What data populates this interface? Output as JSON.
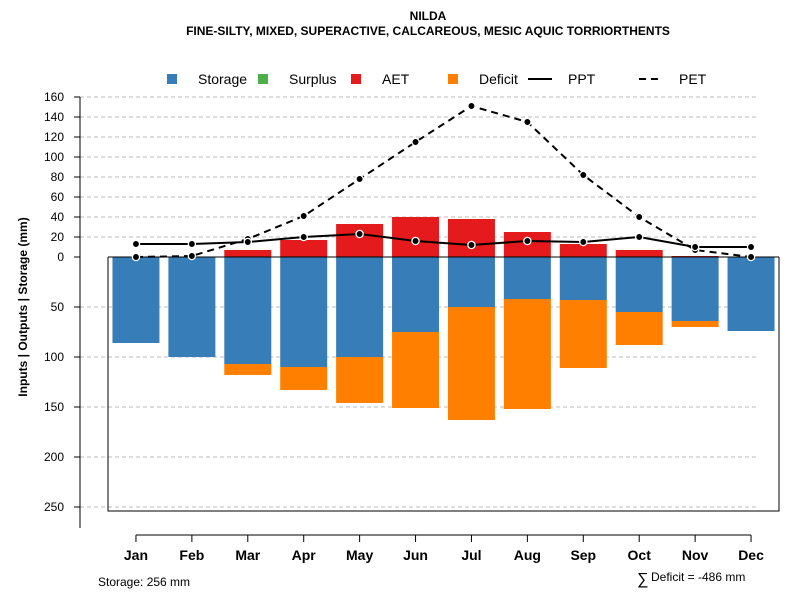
{
  "chart_data": {
    "type": "bar",
    "title": "NILDA",
    "subtitle": "FINE-SILTY, MIXED, SUPERACTIVE, CALCAREOUS, MESIC AQUIC TORRIORTHENTS",
    "ylabel": "Inputs | Outputs | Storage    (mm)",
    "categories": [
      "Jan",
      "Feb",
      "Mar",
      "Apr",
      "May",
      "Jun",
      "Jul",
      "Aug",
      "Sep",
      "Oct",
      "Nov",
      "Dec"
    ],
    "upper_ylim": [
      0,
      160
    ],
    "upper_ticks": [
      "0",
      "20",
      "40",
      "60",
      "80",
      "100",
      "120",
      "140",
      "160"
    ],
    "lower_ylim": [
      0,
      250
    ],
    "lower_ticks": [
      "50",
      "100",
      "150",
      "200",
      "250"
    ],
    "legend": [
      {
        "label": "Storage",
        "color": "#377EB8",
        "kind": "box"
      },
      {
        "label": "Surplus",
        "color": "#4DAF4A",
        "kind": "box"
      },
      {
        "label": "AET",
        "color": "#E41A1C",
        "kind": "box"
      },
      {
        "label": "Deficit",
        "color": "#FF7F00",
        "kind": "box"
      },
      {
        "label": "PPT",
        "color": "#000000",
        "kind": "solid"
      },
      {
        "label": "PET",
        "color": "#000000",
        "kind": "dashed"
      }
    ],
    "series": [
      {
        "name": "AET",
        "values": [
          0,
          0,
          7,
          17,
          33,
          40,
          38,
          25,
          13,
          7,
          1,
          0
        ]
      },
      {
        "name": "Storage",
        "values": [
          86,
          100,
          107,
          110,
          100,
          75,
          50,
          42,
          43,
          55,
          64,
          74
        ]
      },
      {
        "name": "Deficit",
        "values": [
          0,
          0,
          11,
          23,
          46,
          76,
          113,
          110,
          68,
          33,
          6,
          0
        ]
      },
      {
        "name": "Surplus",
        "values": [
          0,
          0,
          0,
          0,
          0,
          0,
          0,
          0,
          0,
          0,
          0,
          0
        ]
      },
      {
        "name": "PPT",
        "values": [
          13,
          13,
          15,
          20,
          23,
          16,
          12,
          16,
          15,
          20,
          10,
          10
        ]
      },
      {
        "name": "PET",
        "values": [
          0,
          1,
          18,
          41,
          78,
          115,
          151,
          135,
          82,
          40,
          7,
          0
        ]
      }
    ]
  },
  "notes": {
    "storage": "Storage: 256 mm",
    "deficit_symbol": "∑",
    "deficit": "Deficit = -486 mm"
  }
}
